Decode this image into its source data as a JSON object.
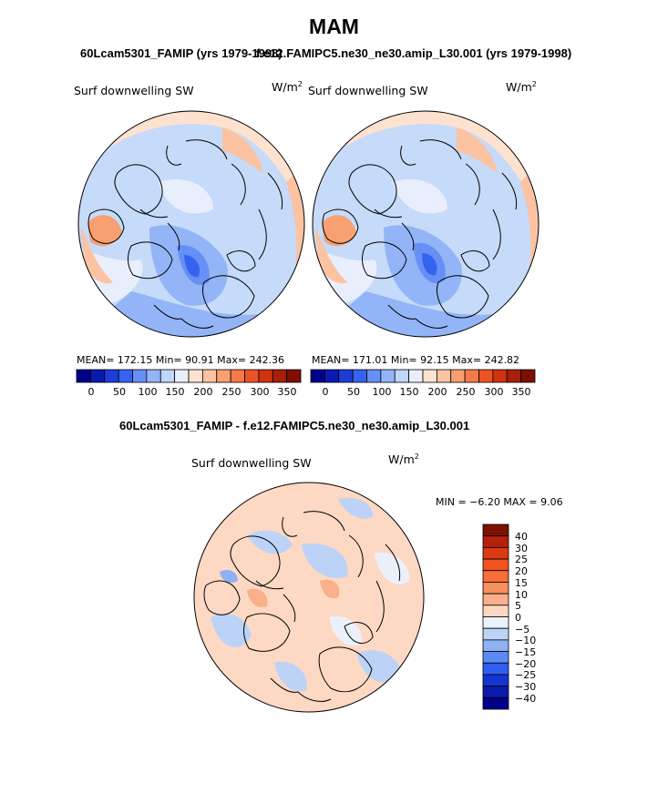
{
  "title": "MAM",
  "panels": [
    {
      "subtitle": "60Lcam5301_FAMIP (yrs 1979-1998)",
      "variable": "Surf downwelling SW",
      "unit_base": "W/m",
      "unit_exp": "2",
      "stats": "MEAN=  172.15   Min=   90.91   Max=  242.36"
    },
    {
      "subtitle": "f.e12.FAMIPC5.ne30_ne30.amip_L30.001 (yrs 1979-1998)",
      "variable": "Surf downwelling SW",
      "unit_base": "W/m",
      "unit_exp": "2",
      "stats": "MEAN=  171.01   Min=   92.15   Max=  242.82"
    }
  ],
  "colorbar_top": {
    "ticks": [
      "0",
      "50",
      "100",
      "150",
      "200",
      "250",
      "300",
      "350"
    ],
    "colors": [
      "#00008b",
      "#0a1ab0",
      "#1e3cd8",
      "#3563f0",
      "#6690f5",
      "#93b5f7",
      "#c0d6fa",
      "#e8eefb",
      "#fde2cf",
      "#fbc3a2",
      "#f8a072",
      "#f57c4a",
      "#ea5425",
      "#cf3310",
      "#a8200a",
      "#7e1002"
    ]
  },
  "diff_panel": {
    "subtitle": "60Lcam5301_FAMIP - f.e12.FAMIPC5.ne30_ne30.amip_L30.001",
    "variable": "Surf downwelling SW",
    "unit_base": "W/m",
    "unit_exp": "2",
    "stats": "MIN =   −6.20 MAX =    9.06"
  },
  "colorbar_diff": {
    "labels": [
      "40",
      "30",
      "25",
      "20",
      "15",
      "10",
      "5",
      "0",
      "−5",
      "−10",
      "−15",
      "−20",
      "−25",
      "−30",
      "−40"
    ],
    "colors": [
      "#7e1002",
      "#b4220a",
      "#db3a12",
      "#f0531f",
      "#f86d38",
      "#f98f5f",
      "#fbb08c",
      "#fdd9c4",
      "#ebf1fa",
      "#bcd3f7",
      "#8eb1f5",
      "#5c8af2",
      "#2f5ff0",
      "#1535d0",
      "#0a1aaa",
      "#00008b"
    ]
  }
}
